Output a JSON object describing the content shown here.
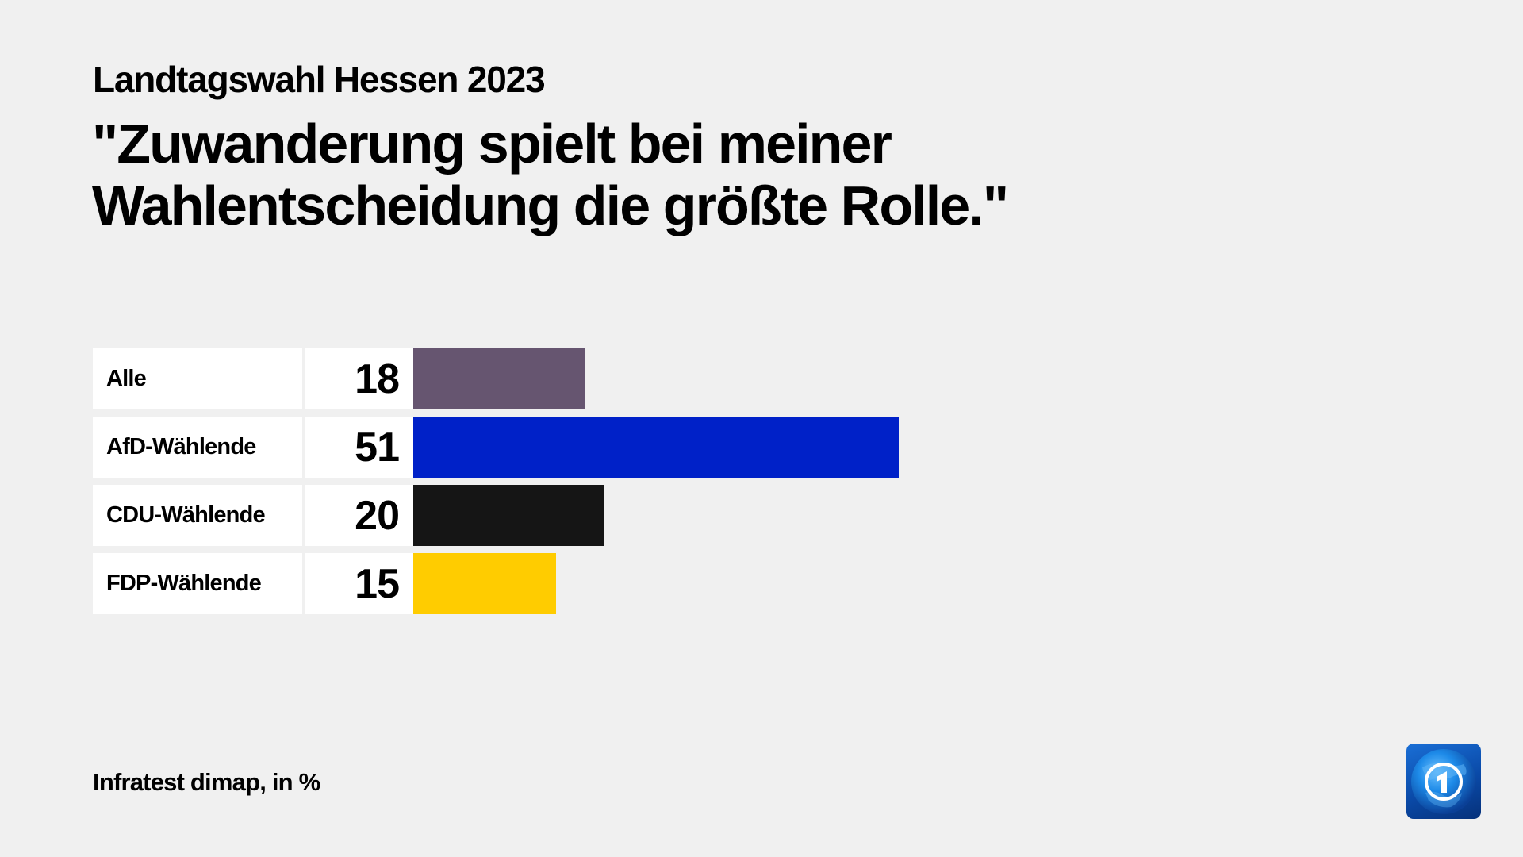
{
  "header": {
    "subtitle": "Landtagswahl Hessen 2023",
    "title_line1": "\"Zuwanderung spielt bei meiner",
    "title_line2": "Wahlentscheidung die größte Rolle.\""
  },
  "rows": [
    {
      "label": "Alle",
      "value": "18",
      "color": "#665570"
    },
    {
      "label": "AfD-Wählende",
      "value": "51",
      "color": "#0021c8"
    },
    {
      "label": "CDU-Wählende",
      "value": "20",
      "color": "#151515"
    },
    {
      "label": "FDP-Wählende",
      "value": "15",
      "color": "#ffcc00"
    }
  ],
  "footer": {
    "source": "Infratest dimap, in %"
  },
  "logo": {
    "icon": "tagesschau-globe-one-icon",
    "background": "#0a4aa8"
  },
  "colors": {
    "background": "#f0f0f0",
    "cell_background": "#ffffff",
    "text": "#000000"
  },
  "chart_data": {
    "type": "bar",
    "orientation": "horizontal",
    "title": "\"Zuwanderung spielt bei meiner Wahlentscheidung die größte Rolle.\"",
    "subtitle": "Landtagswahl Hessen 2023",
    "categories": [
      "Alle",
      "AfD-Wählende",
      "CDU-Wählende",
      "FDP-Wählende"
    ],
    "values": [
      18,
      51,
      20,
      15
    ],
    "colors": [
      "#665570",
      "#0021c8",
      "#151515",
      "#ffcc00"
    ],
    "unit": "%",
    "source": "Infratest dimap, in %",
    "xlabel": "",
    "ylabel": "",
    "grid": false,
    "legend": "none",
    "data_labels": true
  }
}
